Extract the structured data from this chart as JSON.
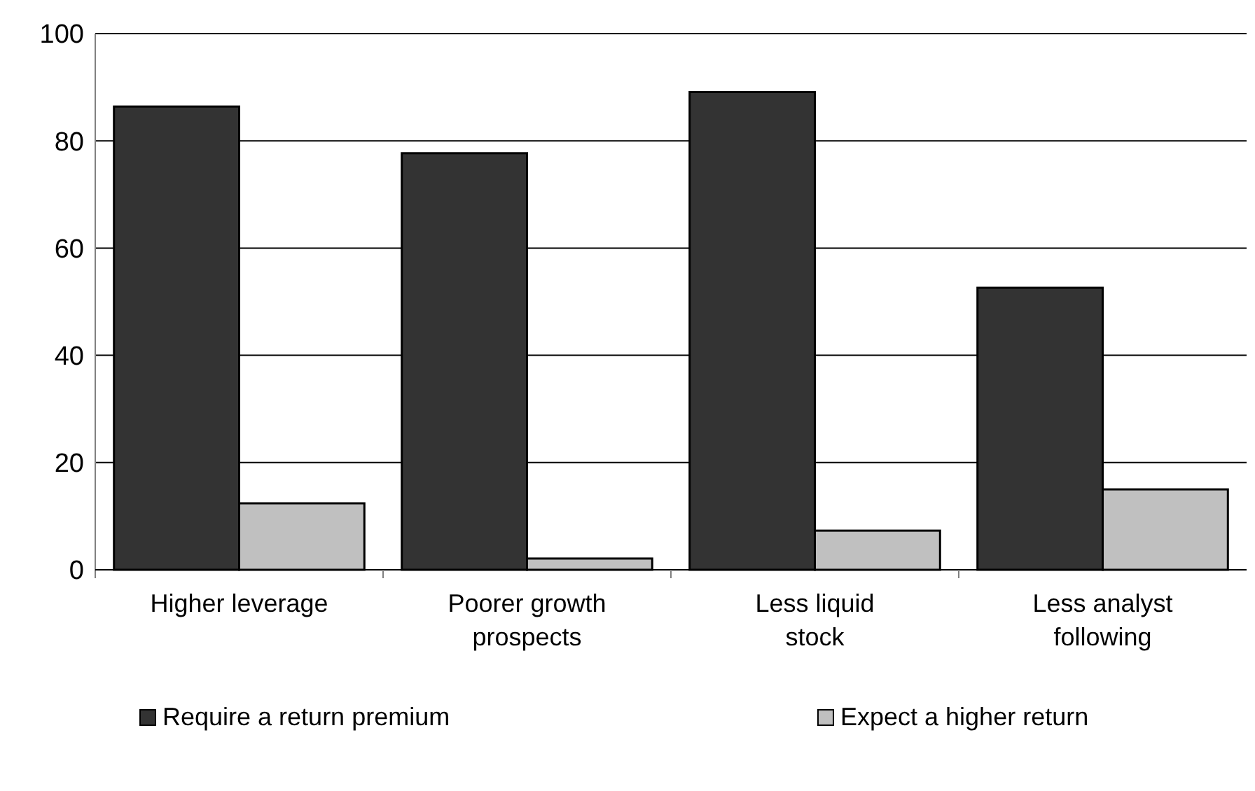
{
  "chart_data": {
    "type": "bar",
    "categories": [
      "Higher leverage",
      "Poorer growth prospects",
      "Less liquid stock",
      "Less analyst following"
    ],
    "series": [
      {
        "name": "Require a return premium",
        "color": "#333333",
        "values": [
          86.4,
          77.7,
          89.1,
          52.6
        ]
      },
      {
        "name": "Expect a higher return",
        "color": "#c0c0c0",
        "values": [
          12.4,
          2.1,
          7.3,
          15.0
        ]
      }
    ],
    "ylim": [
      0,
      100
    ],
    "yticks": [
      0,
      20,
      40,
      60,
      80,
      100
    ],
    "grid": "y",
    "legend": "bottom"
  }
}
